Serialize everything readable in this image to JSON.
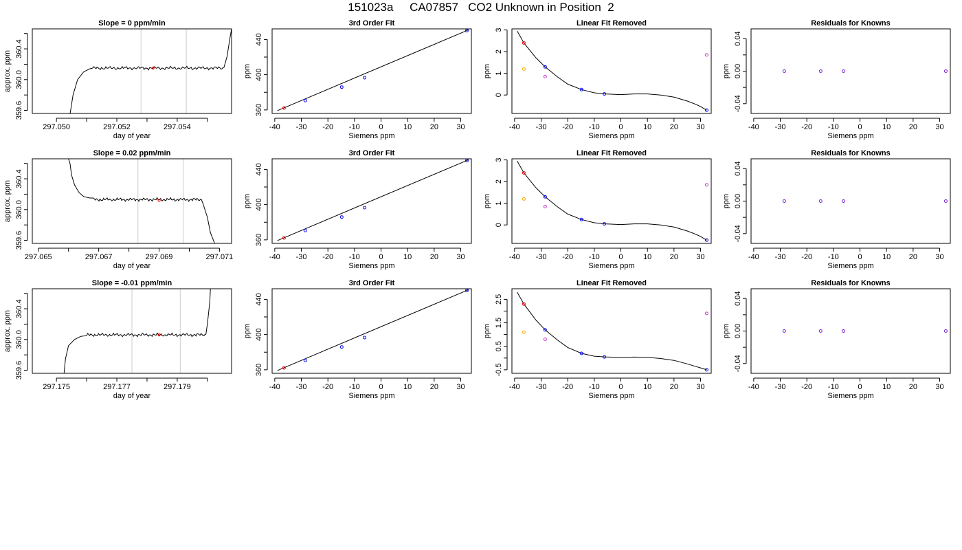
{
  "page": {
    "title": "151023a     CA07857   CO2 Unknown in Position  2"
  },
  "colors": {
    "axis": "#000000",
    "line": "#000000",
    "vline": "#cccccc",
    "red": "#ff0000",
    "blue": "#0000ff",
    "orange": "#ffa500",
    "magenta": "#cc33cc",
    "purple": "#7a1fd6"
  },
  "chart_data": [
    {
      "type": "line",
      "role": "timeseries",
      "title": "Slope =  0  ppm/min",
      "xlabel": "day of year",
      "ylabel": "approx. ppm",
      "xlim": [
        297.0492,
        297.0558
      ],
      "ylim": [
        359.56,
        360.66
      ],
      "xticks": [
        297.05,
        297.051,
        297.052,
        297.053,
        297.054,
        297.055
      ],
      "xticklabels": [
        "297.050",
        "",
        "297.052",
        "",
        "297.054",
        ""
      ],
      "yticks": [
        359.6,
        359.8,
        360.0,
        360.2,
        360.4,
        360.6
      ],
      "yticklabels": [
        "359.6",
        "",
        "360.0",
        "",
        "360.4",
        ""
      ],
      "vlines": [
        297.0528,
        297.0543
      ],
      "trace": {
        "rise": {
          "x": [
            297.05045,
            297.05055,
            297.0507,
            297.0509,
            297.0511,
            297.0512
          ],
          "y": [
            359.55,
            359.8,
            360.0,
            360.1,
            360.14,
            360.15
          ]
        },
        "plateau_start": 297.0512,
        "plateau_end": 297.05555,
        "plateau_level": 360.15,
        "fall": {
          "x": [
            297.05555,
            297.05565,
            297.05575,
            297.0558
          ],
          "y": [
            360.16,
            360.3,
            360.55,
            360.66
          ]
        }
      },
      "marker": {
        "x": 297.0532,
        "y": 360.15,
        "color": "red"
      }
    },
    {
      "type": "scatter",
      "role": "fit",
      "title": "3rd Order Fit",
      "xlabel": "Siemens ppm",
      "ylabel": "ppm",
      "xlim": [
        -41,
        34
      ],
      "ylim": [
        356,
        452
      ],
      "xticks": [
        -40,
        -30,
        -20,
        -10,
        0,
        10,
        20,
        30
      ],
      "xticklabels": [
        "-40",
        "-30",
        "-20",
        "-10",
        "0",
        "10",
        "20",
        "30"
      ],
      "yticks": [
        360,
        380,
        400,
        420,
        440
      ],
      "yticklabels": [
        "360",
        "",
        "400",
        "",
        "440"
      ],
      "points": [
        {
          "x": -36.5,
          "y": 362.2,
          "color": "red"
        },
        {
          "x": -28.5,
          "y": 370.6,
          "color": "blue"
        },
        {
          "x": -14.8,
          "y": 385.9,
          "color": "blue"
        },
        {
          "x": -6.2,
          "y": 396.6,
          "color": "blue"
        },
        {
          "x": 32.3,
          "y": 450.0,
          "color": "blue"
        }
      ],
      "line": {
        "x": [
          -39,
          33
        ],
        "y": [
          359.2,
          451.0
        ]
      }
    },
    {
      "type": "scatter",
      "role": "residual-curve",
      "title": "Linear Fit Removed",
      "xlabel": "Siemens ppm",
      "ylabel": "ppm",
      "xlim": [
        -41,
        34
      ],
      "ylim": [
        -0.85,
        3.05
      ],
      "xticks": [
        -40,
        -30,
        -20,
        -10,
        0,
        10,
        20,
        30
      ],
      "xticklabels": [
        "-40",
        "-30",
        "-20",
        "-10",
        "0",
        "10",
        "20",
        "30"
      ],
      "yticks": [
        0,
        1,
        2,
        3
      ],
      "yticklabels": [
        "0",
        "1",
        "2",
        "3"
      ],
      "points": [
        {
          "x": -36.5,
          "y": 2.4,
          "color": "red"
        },
        {
          "x": -36.5,
          "y": 1.2,
          "color": "orange"
        },
        {
          "x": -28.5,
          "y": 1.3,
          "color": "blue"
        },
        {
          "x": -28.5,
          "y": 0.85,
          "color": "magenta"
        },
        {
          "x": -14.8,
          "y": 0.25,
          "color": "blue"
        },
        {
          "x": -6.2,
          "y": 0.05,
          "color": "blue"
        },
        {
          "x": 32.3,
          "y": -0.7,
          "color": "blue"
        },
        {
          "x": 32.3,
          "y": 1.85,
          "color": "magenta"
        }
      ],
      "curve": {
        "x": [
          -39,
          -36.5,
          -32,
          -28.5,
          -24,
          -20,
          -14.8,
          -10,
          -6.2,
          0,
          5,
          10,
          15,
          20,
          25,
          28,
          30,
          32.3
        ],
        "y": [
          2.95,
          2.4,
          1.72,
          1.3,
          0.85,
          0.5,
          0.25,
          0.1,
          0.05,
          0.02,
          0.05,
          0.05,
          0.0,
          -0.1,
          -0.28,
          -0.42,
          -0.53,
          -0.7
        ]
      }
    },
    {
      "type": "scatter",
      "role": "knowns-residuals",
      "title": "Residuals for Knowns",
      "xlabel": "Siemens ppm",
      "ylabel": "ppm",
      "xlim": [
        -41,
        34
      ],
      "ylim": [
        -0.052,
        0.052
      ],
      "xticks": [
        -40,
        -30,
        -20,
        -10,
        0,
        10,
        20,
        30
      ],
      "xticklabels": [
        "-40",
        "-30",
        "-20",
        "-10",
        "0",
        "10",
        "20",
        "30"
      ],
      "yticks": [
        -0.04,
        -0.02,
        0.0,
        0.02,
        0.04
      ],
      "yticklabels": [
        "-0.04",
        "",
        "0.00",
        "",
        "0.04"
      ],
      "points": [
        {
          "x": -28.5,
          "y": 0,
          "color": "purple"
        },
        {
          "x": -14.8,
          "y": 0,
          "color": "purple"
        },
        {
          "x": -6.2,
          "y": 0,
          "color": "purple"
        },
        {
          "x": 32.3,
          "y": 0,
          "color": "purple"
        }
      ]
    },
    {
      "type": "line",
      "role": "timeseries",
      "title": "Slope =  0.02  ppm/min",
      "xlabel": "day of year",
      "ylabel": "approx. ppm",
      "xlim": [
        297.0648,
        297.0714
      ],
      "ylim": [
        359.56,
        360.66
      ],
      "xticks": [
        297.065,
        297.066,
        297.067,
        297.068,
        297.069,
        297.07,
        297.071
      ],
      "xticklabels": [
        "297.065",
        "",
        "297.067",
        "",
        "297.069",
        "",
        "297.071"
      ],
      "yticks": [
        359.6,
        359.8,
        360.0,
        360.2,
        360.4,
        360.6
      ],
      "yticklabels": [
        "359.6",
        "",
        "360.0",
        "",
        "360.4",
        ""
      ],
      "vlines": [
        297.0683,
        297.0698
      ],
      "trace": {
        "rise": {
          "x": [
            297.066,
            297.06605,
            297.0661,
            297.0662,
            297.06635,
            297.0665,
            297.0667,
            297.0668
          ],
          "y": [
            360.66,
            360.6,
            360.45,
            360.32,
            360.22,
            360.17,
            360.15,
            360.15
          ]
        },
        "plateau_start": 297.0668,
        "plateau_end": 297.0704,
        "plateau_level": 360.13,
        "fall": {
          "x": [
            297.0704,
            297.07045,
            297.0706,
            297.0707,
            297.07085
          ],
          "y": [
            360.13,
            360.08,
            359.9,
            359.7,
            359.55
          ]
        }
      },
      "marker": {
        "x": 297.069,
        "y": 360.12,
        "color": "red"
      }
    },
    {
      "type": "scatter",
      "role": "fit",
      "title": "3rd Order Fit",
      "xlabel": "Siemens ppm",
      "ylabel": "ppm",
      "xlim": [
        -41,
        34
      ],
      "ylim": [
        356,
        452
      ],
      "xticks": [
        -40,
        -30,
        -20,
        -10,
        0,
        10,
        20,
        30
      ],
      "xticklabels": [
        "-40",
        "-30",
        "-20",
        "-10",
        "0",
        "10",
        "20",
        "30"
      ],
      "yticks": [
        360,
        380,
        400,
        420,
        440
      ],
      "yticklabels": [
        "360",
        "",
        "400",
        "",
        "440"
      ],
      "points": [
        {
          "x": -36.5,
          "y": 362.2,
          "color": "red"
        },
        {
          "x": -28.5,
          "y": 370.6,
          "color": "blue"
        },
        {
          "x": -14.8,
          "y": 385.9,
          "color": "blue"
        },
        {
          "x": -6.2,
          "y": 396.6,
          "color": "blue"
        },
        {
          "x": 32.3,
          "y": 450.0,
          "color": "blue"
        }
      ],
      "line": {
        "x": [
          -39,
          33
        ],
        "y": [
          359.2,
          451.0
        ]
      }
    },
    {
      "type": "scatter",
      "role": "residual-curve",
      "title": "Linear Fit Removed",
      "xlabel": "Siemens ppm",
      "ylabel": "ppm",
      "xlim": [
        -41,
        34
      ],
      "ylim": [
        -0.85,
        3.05
      ],
      "xticks": [
        -40,
        -30,
        -20,
        -10,
        0,
        10,
        20,
        30
      ],
      "xticklabels": [
        "-40",
        "-30",
        "-20",
        "-10",
        "0",
        "10",
        "20",
        "30"
      ],
      "yticks": [
        0,
        1,
        2,
        3
      ],
      "yticklabels": [
        "0",
        "1",
        "2",
        "3"
      ],
      "points": [
        {
          "x": -36.5,
          "y": 2.4,
          "color": "red"
        },
        {
          "x": -36.5,
          "y": 1.2,
          "color": "orange"
        },
        {
          "x": -28.5,
          "y": 1.3,
          "color": "blue"
        },
        {
          "x": -28.5,
          "y": 0.85,
          "color": "magenta"
        },
        {
          "x": -14.8,
          "y": 0.25,
          "color": "blue"
        },
        {
          "x": -6.2,
          "y": 0.05,
          "color": "blue"
        },
        {
          "x": 32.3,
          "y": -0.7,
          "color": "blue"
        },
        {
          "x": 32.3,
          "y": 1.85,
          "color": "magenta"
        }
      ],
      "curve": {
        "x": [
          -39,
          -36.5,
          -32,
          -28.5,
          -24,
          -20,
          -14.8,
          -10,
          -6.2,
          0,
          5,
          10,
          15,
          20,
          25,
          28,
          30,
          32.3
        ],
        "y": [
          2.95,
          2.4,
          1.72,
          1.3,
          0.85,
          0.5,
          0.25,
          0.1,
          0.05,
          0.02,
          0.05,
          0.05,
          0.0,
          -0.1,
          -0.28,
          -0.42,
          -0.53,
          -0.7
        ]
      }
    },
    {
      "type": "scatter",
      "role": "knowns-residuals",
      "title": "Residuals for Knowns",
      "xlabel": "Siemens ppm",
      "ylabel": "ppm",
      "xlim": [
        -41,
        34
      ],
      "ylim": [
        -0.052,
        0.052
      ],
      "xticks": [
        -40,
        -30,
        -20,
        -10,
        0,
        10,
        20,
        30
      ],
      "xticklabels": [
        "-40",
        "-30",
        "-20",
        "-10",
        "0",
        "10",
        "20",
        "30"
      ],
      "yticks": [
        -0.04,
        -0.02,
        0.0,
        0.02,
        0.04
      ],
      "yticklabels": [
        "-0.04",
        "",
        "0.00",
        "",
        "0.04"
      ],
      "points": [
        {
          "x": -28.5,
          "y": 0,
          "color": "purple"
        },
        {
          "x": -14.8,
          "y": 0,
          "color": "purple"
        },
        {
          "x": -6.2,
          "y": 0,
          "color": "purple"
        },
        {
          "x": 32.3,
          "y": 0,
          "color": "purple"
        }
      ]
    },
    {
      "type": "line",
      "role": "timeseries",
      "title": "Slope =  -0.01  ppm/min",
      "xlabel": "day of year",
      "ylabel": "approx. ppm",
      "xlim": [
        297.1742,
        297.1808
      ],
      "ylim": [
        359.56,
        360.66
      ],
      "xticks": [
        297.175,
        297.176,
        297.177,
        297.178,
        297.179,
        297.18
      ],
      "xticklabels": [
        "297.175",
        "",
        "297.177",
        "",
        "297.179",
        ""
      ],
      "yticks": [
        359.6,
        359.8,
        360.0,
        360.2,
        360.4,
        360.6
      ],
      "yticklabels": [
        "359.6",
        "",
        "360.0",
        "",
        "360.4",
        ""
      ],
      "vlines": [
        297.1775,
        297.1791
      ],
      "trace": {
        "rise": {
          "x": [
            297.17525,
            297.1753,
            297.1754,
            297.1756,
            297.1758,
            297.176
          ],
          "y": [
            359.55,
            359.75,
            359.92,
            360.0,
            360.04,
            360.05
          ]
        },
        "plateau_start": 297.176,
        "plateau_end": 297.17995,
        "plateau_level": 360.06,
        "fall": {
          "x": [
            297.17995,
            297.18,
            297.18008,
            297.1801
          ],
          "y": [
            360.07,
            360.2,
            360.5,
            360.66
          ]
        }
      },
      "marker": {
        "x": 297.1784,
        "y": 360.06,
        "color": "red"
      }
    },
    {
      "type": "scatter",
      "role": "fit",
      "title": "3rd Order Fit",
      "xlabel": "Siemens ppm",
      "ylabel": "ppm",
      "xlim": [
        -41,
        34
      ],
      "ylim": [
        356,
        452
      ],
      "xticks": [
        -40,
        -30,
        -20,
        -10,
        0,
        10,
        20,
        30
      ],
      "xticklabels": [
        "-40",
        "-30",
        "-20",
        "-10",
        "0",
        "10",
        "20",
        "30"
      ],
      "yticks": [
        360,
        380,
        400,
        420,
        440
      ],
      "yticklabels": [
        "360",
        "",
        "400",
        "",
        "440"
      ],
      "points": [
        {
          "x": -36.5,
          "y": 362.2,
          "color": "red"
        },
        {
          "x": -28.5,
          "y": 370.6,
          "color": "blue"
        },
        {
          "x": -14.8,
          "y": 385.9,
          "color": "blue"
        },
        {
          "x": -6.2,
          "y": 396.6,
          "color": "blue"
        },
        {
          "x": 32.3,
          "y": 450.0,
          "color": "blue"
        }
      ],
      "line": {
        "x": [
          -39,
          33
        ],
        "y": [
          359.2,
          451.0
        ]
      }
    },
    {
      "type": "scatter",
      "role": "residual-curve",
      "title": "Linear Fit Removed",
      "xlabel": "Siemens ppm",
      "ylabel": "ppm",
      "xlim": [
        -41,
        34
      ],
      "ylim": [
        -0.65,
        2.95
      ],
      "xticks": [
        -40,
        -30,
        -20,
        -10,
        0,
        10,
        20,
        30
      ],
      "xticklabels": [
        "-40",
        "-30",
        "-20",
        "-10",
        "0",
        "10",
        "20",
        "30"
      ],
      "yticks": [
        -0.5,
        0.0,
        0.5,
        1.0,
        1.5,
        2.0,
        2.5
      ],
      "yticklabels": [
        "-0.5",
        "",
        "0.5",
        "",
        "1.5",
        "",
        "2.5"
      ],
      "points": [
        {
          "x": -36.5,
          "y": 2.3,
          "color": "red"
        },
        {
          "x": -36.5,
          "y": 1.1,
          "color": "orange"
        },
        {
          "x": -28.5,
          "y": 1.2,
          "color": "blue"
        },
        {
          "x": -28.5,
          "y": 0.8,
          "color": "magenta"
        },
        {
          "x": -14.8,
          "y": 0.2,
          "color": "blue"
        },
        {
          "x": -6.2,
          "y": 0.05,
          "color": "blue"
        },
        {
          "x": 32.3,
          "y": -0.5,
          "color": "blue"
        },
        {
          "x": 32.3,
          "y": 1.9,
          "color": "magenta"
        }
      ],
      "curve": {
        "x": [
          -39,
          -36.5,
          -32,
          -28.5,
          -24,
          -20,
          -14.8,
          -10,
          -6.2,
          0,
          5,
          10,
          15,
          20,
          25,
          28,
          30,
          32.3
        ],
        "y": [
          2.8,
          2.3,
          1.62,
          1.2,
          0.78,
          0.45,
          0.2,
          0.08,
          0.05,
          0.02,
          0.04,
          0.03,
          -0.02,
          -0.1,
          -0.25,
          -0.35,
          -0.42,
          -0.5
        ]
      }
    },
    {
      "type": "scatter",
      "role": "knowns-residuals",
      "title": "Residuals for Knowns",
      "xlabel": "Siemens ppm",
      "ylabel": "ppm",
      "xlim": [
        -41,
        34
      ],
      "ylim": [
        -0.052,
        0.052
      ],
      "xticks": [
        -40,
        -30,
        -20,
        -10,
        0,
        10,
        20,
        30
      ],
      "xticklabels": [
        "-40",
        "-30",
        "-20",
        "-10",
        "0",
        "10",
        "20",
        "30"
      ],
      "yticks": [
        -0.04,
        -0.02,
        0.0,
        0.02,
        0.04
      ],
      "yticklabels": [
        "-0.04",
        "",
        "0.00",
        "",
        "0.04"
      ],
      "points": [
        {
          "x": -28.5,
          "y": 0,
          "color": "purple"
        },
        {
          "x": -14.8,
          "y": 0,
          "color": "purple"
        },
        {
          "x": -6.2,
          "y": 0,
          "color": "purple"
        },
        {
          "x": 32.3,
          "y": 0,
          "color": "purple"
        }
      ]
    }
  ]
}
